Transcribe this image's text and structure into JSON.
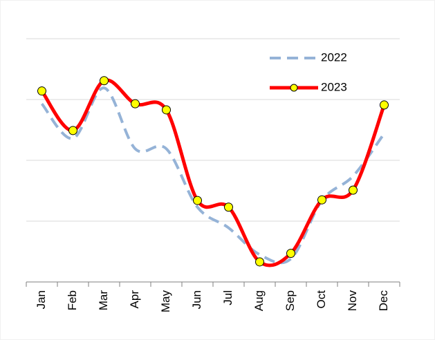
{
  "chart_data": {
    "type": "line",
    "categories": [
      "Jan",
      "Feb",
      "Mar",
      "Apr",
      "May",
      "Jun",
      "Jul",
      "Aug",
      "Sep",
      "Oct",
      "Nov",
      "Dec"
    ],
    "series": [
      {
        "name": "2022",
        "color": "#95b3d7",
        "dashed": true,
        "markers": false,
        "values": [
          29.3,
          23.6,
          31.9,
          21.9,
          21.9,
          12.3,
          8.9,
          4.5,
          3.8,
          13.4,
          17.4,
          24.4
        ]
      },
      {
        "name": "2023",
        "color": "#ff0000",
        "dashed": false,
        "markers": true,
        "marker_color": "#ffff00",
        "values": [
          31.4,
          24.9,
          33.1,
          29.3,
          28.3,
          13.4,
          12.3,
          3.3,
          4.7,
          13.5,
          15.1,
          29.1
        ]
      }
    ],
    "ylim": [
      0,
      40
    ],
    "yticks": [
      10,
      20,
      30,
      40
    ],
    "grid": true,
    "smooth": true,
    "legend": "upper right"
  }
}
